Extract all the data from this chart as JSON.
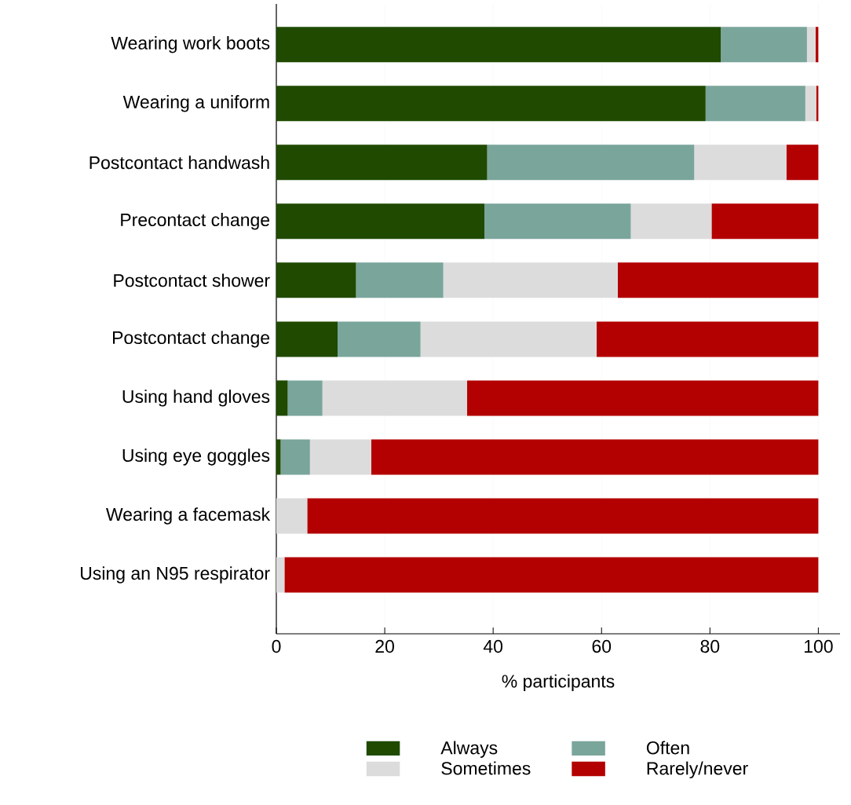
{
  "chart_data": {
    "type": "bar",
    "orientation": "horizontal",
    "stacked": true,
    "xlabel": "% participants",
    "categories": [
      "Wearing work boots",
      "Wearing a uniform",
      "Postcontact handwash",
      "Precontact change",
      "Postcontact shower",
      "Postcontact change",
      "Using hand gloves",
      "Using eye goggles",
      "Wearing a facemask",
      "Using an N95 respirator"
    ],
    "series": [
      {
        "name": "Always",
        "color": "#1f4a00",
        "values": [
          82.0,
          79.2,
          38.9,
          38.4,
          14.7,
          11.3,
          2.1,
          0.8,
          0,
          0
        ]
      },
      {
        "name": "Often",
        "color": "#7aa59b",
        "values": [
          15.9,
          18.4,
          38.2,
          27.0,
          16.1,
          15.3,
          6.4,
          5.4,
          0,
          0
        ]
      },
      {
        "name": "Sometimes",
        "color": "#dcdcdc",
        "values": [
          1.6,
          2.0,
          17.0,
          14.9,
          32.2,
          32.5,
          26.7,
          11.3,
          5.7,
          1.5
        ]
      },
      {
        "name": "Rarely/never",
        "color": "#b30000",
        "values": [
          0.5,
          0.4,
          5.9,
          19.7,
          37.0,
          40.9,
          64.8,
          82.5,
          94.3,
          98.5
        ]
      }
    ],
    "xlim": [
      0,
      104
    ],
    "xticks": [
      0,
      20,
      40,
      60,
      80,
      100
    ],
    "grid": "x",
    "legend": "bottom"
  }
}
